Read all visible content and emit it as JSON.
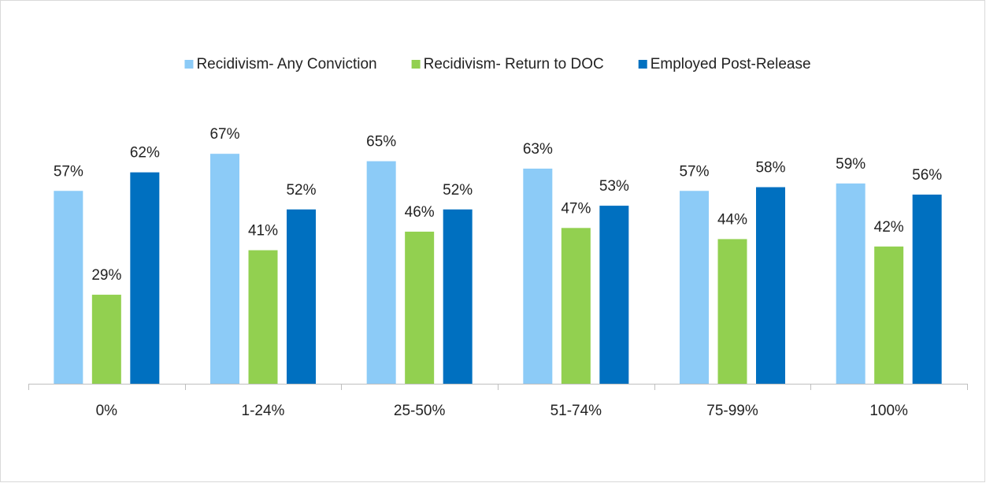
{
  "chart_data": {
    "type": "bar",
    "categories": [
      "0%",
      "1-24%",
      "25-50%",
      "51-74%",
      "75-99%",
      "100%"
    ],
    "series": [
      {
        "name": "Recidivism- Any Conviction",
        "color": "#8ccbf7",
        "values": [
          57,
          67,
          65,
          63,
          57,
          59
        ],
        "value_labels": [
          "57%",
          "67%",
          "65%",
          "63%",
          "57%",
          "59%"
        ]
      },
      {
        "name": "Recidivism- Return to DOC",
        "color": "#92d050",
        "values": [
          29,
          41,
          46,
          47,
          44,
          42
        ],
        "value_labels": [
          "29%",
          "41%",
          "46%",
          "47%",
          "44%",
          "42%"
        ]
      },
      {
        "name": "Employed Post-Release",
        "color": "#0070c0",
        "values": [
          62,
          52,
          52,
          53,
          58,
          56
        ],
        "value_labels": [
          "62%",
          "52%",
          "52%",
          "53%",
          "58%",
          "56%"
        ]
      }
    ],
    "ylim": [
      5,
      80
    ],
    "legend": "top"
  }
}
